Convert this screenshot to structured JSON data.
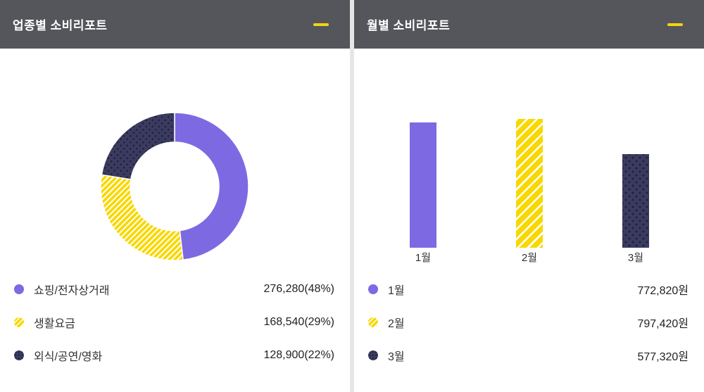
{
  "panels": {
    "left": {
      "title": "업종별 소비리포트",
      "legend": [
        {
          "label": "쇼핑/전자상거래",
          "value_text": "276,280(48%)"
        },
        {
          "label": "생활요금",
          "value_text": "168,540(29%)"
        },
        {
          "label": "외식/공연/영화",
          "value_text": "128,900(22%)"
        }
      ]
    },
    "right": {
      "title": "월별 소비리포트",
      "legend": [
        {
          "label": "1월",
          "value_text": "772,820원"
        },
        {
          "label": "2월",
          "value_text": "797,420원"
        },
        {
          "label": "3월",
          "value_text": "577,320원"
        }
      ]
    }
  },
  "icons": {
    "panel_toggle": "minus-dash"
  },
  "colors": {
    "purple": "#7d6ae2",
    "yellow": "#f8d800",
    "navy": "#3b3b60",
    "header_bg": "#55565b",
    "accent_dash": "#f3d411"
  },
  "chart_data": [
    {
      "type": "pie",
      "donut": true,
      "title": "업종별 소비리포트",
      "categories": [
        "쇼핑/전자상거래",
        "생활요금",
        "외식/공연/영화"
      ],
      "values": [
        276280,
        168540,
        128900
      ],
      "percentages": [
        48,
        29,
        22
      ],
      "styles": [
        "solid-purple",
        "striped-yellow",
        "dotted-navy"
      ],
      "start_angle_deg": -90,
      "direction": "clockwise",
      "legend_position": "bottom"
    },
    {
      "type": "bar",
      "title": "월별 소비리포트",
      "categories": [
        "1월",
        "2월",
        "3월"
      ],
      "values": [
        772820,
        797420,
        577320
      ],
      "unit": "원",
      "styles": [
        "solid-purple",
        "striped-yellow",
        "dotted-navy"
      ],
      "ylim": [
        0,
        800000
      ],
      "grid": false,
      "legend_position": "bottom"
    }
  ]
}
